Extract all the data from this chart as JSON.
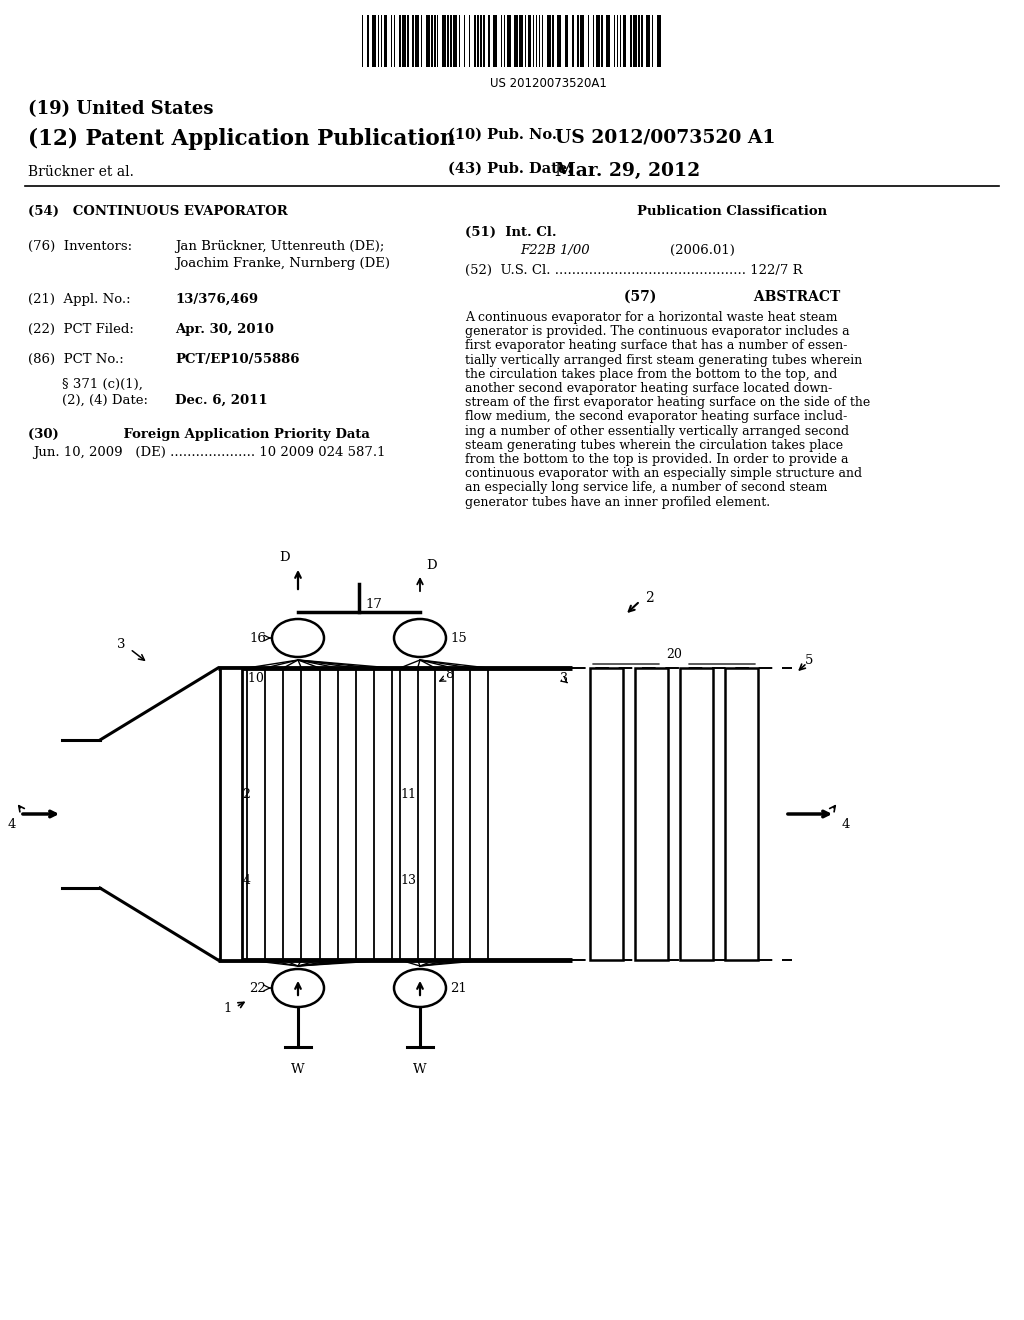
{
  "bg_color": "#ffffff",
  "barcode_text": "US 20120073520A1",
  "title_19": "(19) United States",
  "title_12": "(12) Patent Application Publication",
  "pub_no_label": "(10) Pub. No.:",
  "pub_no": "US 2012/0073520 A1",
  "author_line": "Brückner et al.",
  "pub_date_label": "(43) Pub. Date:",
  "pub_date": "Mar. 29, 2012",
  "section54": "(54)   CONTINUOUS EVAPORATOR",
  "pub_class_title": "Publication Classification",
  "int_cl_line1": "(51)  Int. Cl.",
  "int_cl_code": "F22B 1/00",
  "int_cl_date": "(2006.01)",
  "us_cl_line": "(52)  U.S. Cl. ............................................. 122/7 R",
  "abstract_header": "(57)                    ABSTRACT",
  "abstract_lines": [
    "A continuous evaporator for a horizontal waste heat steam",
    "generator is provided. The continuous evaporator includes a",
    "first evaporator heating surface that has a number of essen-",
    "tially vertically arranged first steam generating tubes wherein",
    "the circulation takes place from the bottom to the top, and",
    "another second evaporator heating surface located down-",
    "stream of the first evaporator heating surface on the side of the",
    "flow medium, the second evaporator heating surface includ-",
    "ing a number of other essentially vertically arranged second",
    "steam generating tubes wherein the circulation takes place",
    "from the bottom to the top is provided. In order to provide a",
    "continuous evaporator with an especially simple structure and",
    "an especially long service life, a number of second steam",
    "generator tubes have an inner profiled element."
  ],
  "inv_label": "(76)  Inventors:",
  "inv_line1": "Jan Brückner, Uttenreuth (DE);",
  "inv_line2": "Joachim Franke, Nurnberg (DE)",
  "appl_label": "(21)  Appl. No.:",
  "appl_val": "13/376,469",
  "pct_filed_label": "(22)  PCT Filed:",
  "pct_filed_val": "Apr. 30, 2010",
  "pct_no_label": "(86)  PCT No.:",
  "pct_no_val": "PCT/EP10/55886",
  "s371_line1": "        § 371 (c)(1),",
  "s371_line2": "        (2), (4) Date:",
  "s371_val": "Dec. 6, 2011",
  "foreign_header": "(30)              Foreign Application Priority Data",
  "foreign_data": "Jun. 10, 2009   (DE) .................... 10 2009 024 587.1"
}
